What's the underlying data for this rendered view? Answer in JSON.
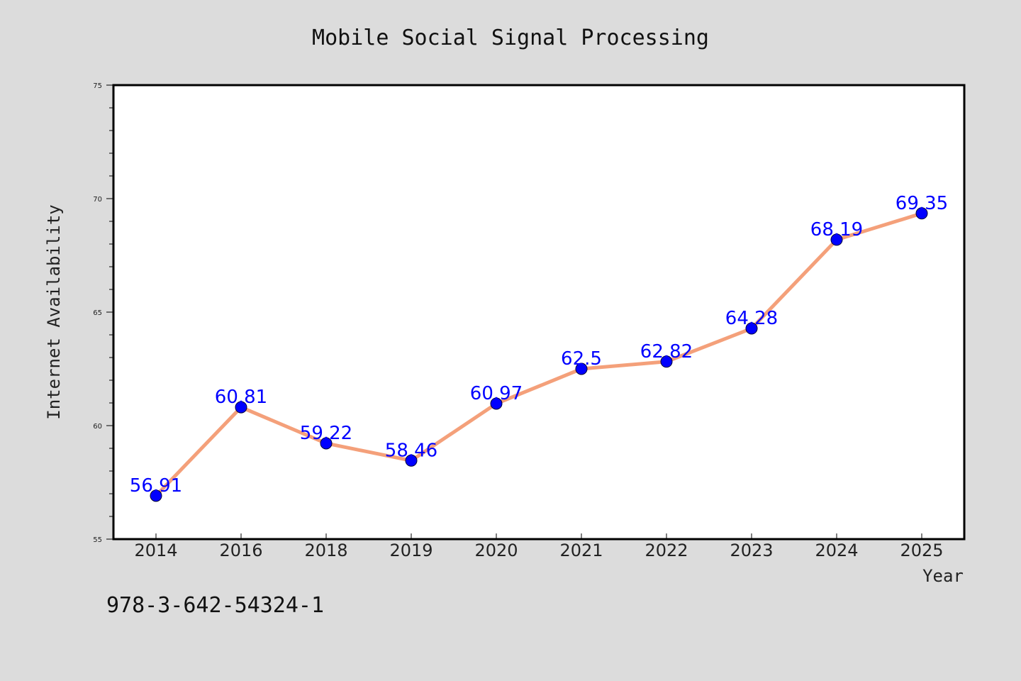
{
  "chart_data": {
    "type": "line",
    "title": "Mobile Social Signal Processing",
    "xlabel": "Year",
    "ylabel": "Internet Availability",
    "categories": [
      "2014",
      "2016",
      "2018",
      "2019",
      "2020",
      "2021",
      "2022",
      "2023",
      "2024",
      "2025"
    ],
    "series": [
      {
        "values": [
          56.91,
          60.81,
          59.22,
          58.46,
          60.97,
          62.5,
          62.82,
          64.28,
          68.19,
          69.35
        ],
        "line_color": "#f4a07a",
        "marker_color": "#0000ff"
      }
    ],
    "data_labels": [
      "56.91",
      "60.81",
      "59.22",
      "58.46",
      "60.97",
      "62.5",
      "62.82",
      "64.28",
      "68.19",
      "69.35"
    ],
    "ylim": [
      55,
      75
    ],
    "yticks": [
      "55",
      "60",
      "65",
      "70",
      "75"
    ],
    "grid": false,
    "legend": "none"
  },
  "footnote": "978-3-642-54324-1",
  "colors": {
    "background": "#dcdcdc",
    "plot_background": "#ffffff",
    "line": "#f4a07a",
    "marker": "#0000ff",
    "label": "#0000ff"
  }
}
